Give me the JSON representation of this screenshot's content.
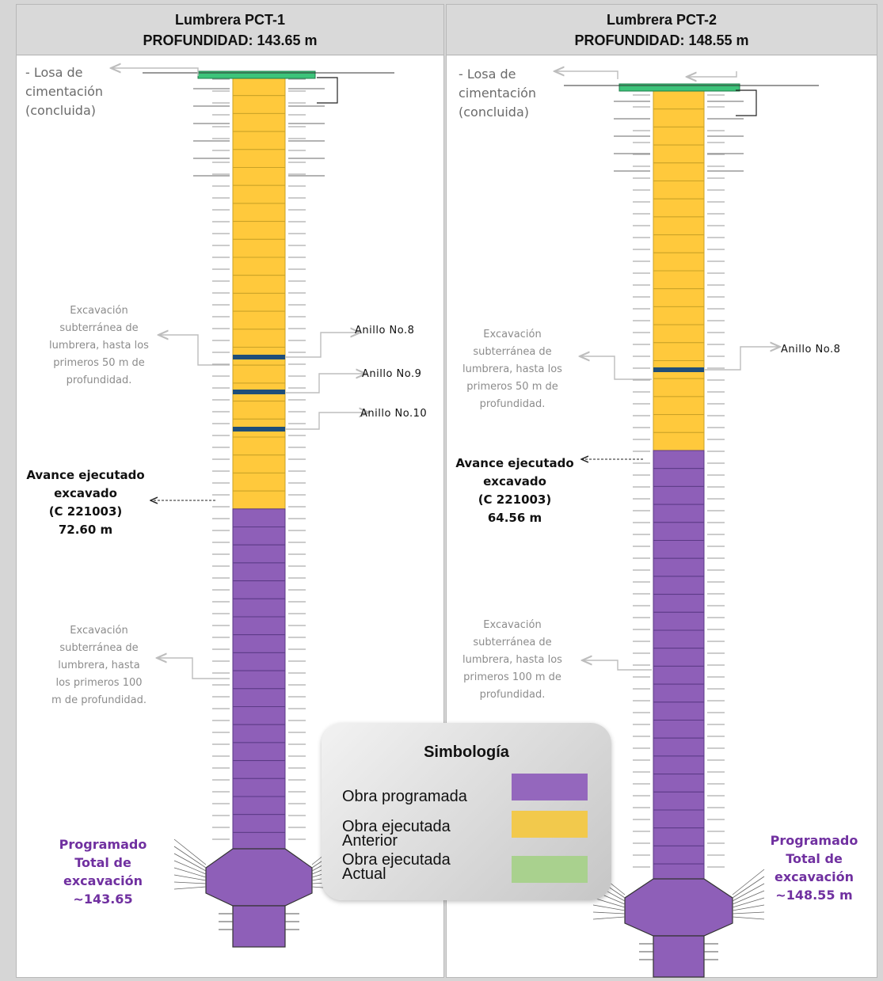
{
  "panels": [
    {
      "title": "Lumbrera PCT-1",
      "depth": "PROFUNDIDAD: 143.65 m",
      "losa_note": [
        "- Losa de",
        "cimentación",
        "(concluida)"
      ],
      "excavation_note_1": [
        "Excavación",
        "subterránea de",
        "lumbrera, hasta los",
        "primeros 50 m de",
        "profundidad."
      ],
      "excavation_note_2": [
        "Excavación",
        "subterránea de",
        "lumbrera, hasta",
        "los primeros 100",
        "m de profundidad."
      ],
      "advance": [
        "Avance ejecutado",
        "excavado",
        "(C 221003)",
        "72.60 m"
      ],
      "programmed": [
        "Programado",
        "Total de",
        "excavación",
        "~143.65"
      ],
      "rings": [
        "Anillo No.8",
        "Anillo No.9",
        "Anillo No.10"
      ]
    },
    {
      "title": "Lumbrera PCT-2",
      "depth": "PROFUNDIDAD: 148.55 m",
      "losa_note": [
        "- Losa de",
        "cimentación",
        "(concluida)"
      ],
      "excavation_note_1": [
        "Excavación",
        "subterránea de",
        "lumbrera, hasta los",
        "primeros 50 m de",
        "profundidad."
      ],
      "excavation_note_2": [
        "Excavación",
        "subterránea de",
        "lumbrera, hasta los",
        "primeros 100 m de",
        "profundidad."
      ],
      "advance": [
        "Avance ejecutado",
        "excavado",
        "(C 221003)",
        "64.56 m"
      ],
      "programmed": [
        "Programado",
        "Total de",
        "excavación",
        "~148.55 m"
      ],
      "rings": [
        "Anillo No.8"
      ]
    }
  ],
  "legend": {
    "title": "Simbología",
    "items": [
      {
        "label": [
          "Obra programada"
        ],
        "color": "#9467bd"
      },
      {
        "label": [
          "Obra ejecutada",
          "Anterior"
        ],
        "color": "#f2c94c"
      },
      {
        "label": [
          "Obra ejecutada",
          "Actual"
        ],
        "color": "#a9d18e"
      }
    ]
  },
  "colors": {
    "programmed": "#8e5fb8",
    "executed_previous": "#ffc93c",
    "executed_current": "#3cc47a",
    "ring": "#1f4e79"
  }
}
